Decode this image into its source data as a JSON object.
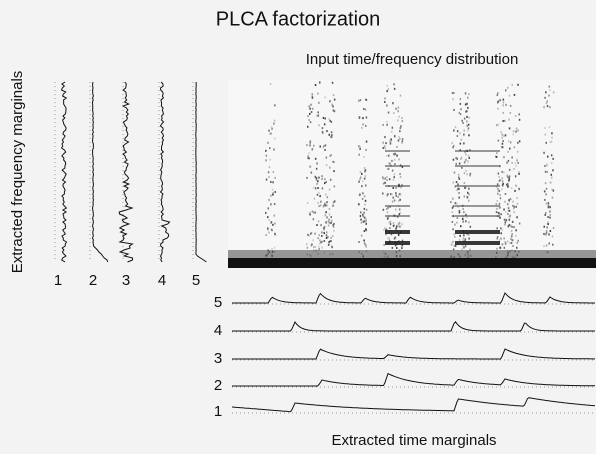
{
  "title": "PLCA factorization",
  "frequency_panel": {
    "label": "Extracted frequency marginals",
    "components": [
      "1",
      "2",
      "3",
      "4",
      "5"
    ]
  },
  "spectrogram": {
    "label": "Input time/frequency distribution"
  },
  "time_panel": {
    "label": "Extracted time marginals",
    "components": [
      "5",
      "4",
      "3",
      "2",
      "1"
    ]
  }
}
